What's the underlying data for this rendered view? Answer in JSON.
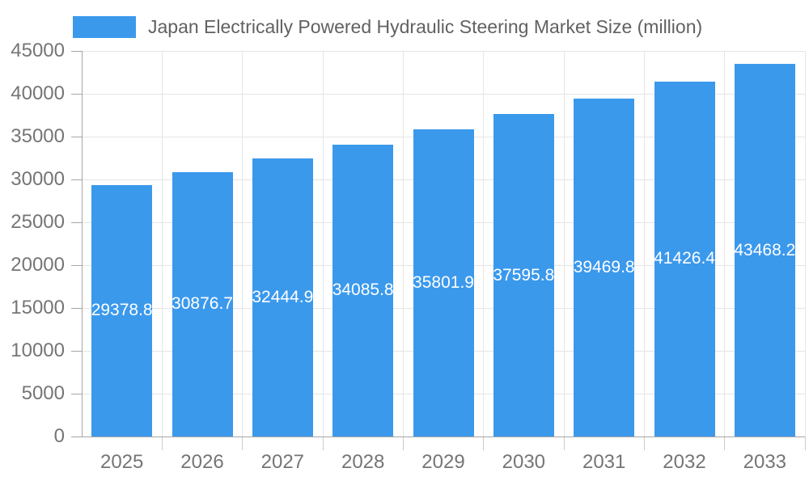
{
  "legend": {
    "title": "Japan Electrically Powered Hydraulic Steering Market Size (million)"
  },
  "chart_data": {
    "type": "bar",
    "title": "Japan Electrically Powered Hydraulic Steering Market Size (million)",
    "categories": [
      "2025",
      "2026",
      "2027",
      "2028",
      "2029",
      "2030",
      "2031",
      "2032",
      "2033"
    ],
    "values": [
      29378.8,
      30876.7,
      32444.9,
      34085.8,
      35801.9,
      37595.8,
      39469.8,
      41426.4,
      43468.2
    ],
    "bar_labels": [
      "29378.8",
      "30876.7",
      "32444.9",
      "34085.8",
      "35801.9",
      "37595.8",
      "39469.8",
      "41426.4",
      "43468.2"
    ],
    "xlabel": "",
    "ylabel": "",
    "ylim": [
      0,
      45000
    ],
    "y_ticks": [
      0,
      5000,
      10000,
      15000,
      20000,
      25000,
      30000,
      35000,
      40000,
      45000
    ],
    "y_tick_labels": [
      "0",
      "5000",
      "10000",
      "15000",
      "20000",
      "25000",
      "30000",
      "35000",
      "40000",
      "45000"
    ],
    "grid": true,
    "legend_position": "top-left",
    "colors": {
      "bar": "#3B99EC",
      "gridline": "#e5e5e5",
      "axis_line": "#a6a6a6",
      "y_tick": "#a6a6a6",
      "x_tick": "#cccccc",
      "axis_text": "#757575",
      "title_text": "#616161",
      "bar_label_text": "#ffffff"
    }
  }
}
